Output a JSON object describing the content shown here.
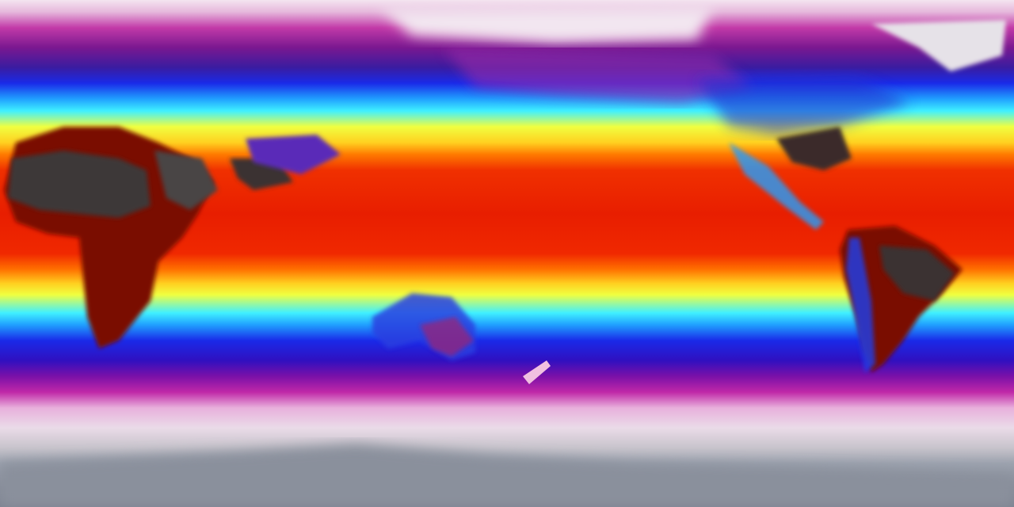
{
  "map": {
    "projection": "equirectangular",
    "colormap": {
      "coldest": "#eadbe8",
      "cold": "#c028a8",
      "cool": "#1a2ae8",
      "mild": "#40f0ff",
      "warm": "#f0ff40",
      "hot": "#e81e00",
      "hottest": "#2a2a2a"
    },
    "land_hot_color": "#8a0a00",
    "land_extreme_color": "#3a3636",
    "antarctica_color": "#8a909c"
  }
}
